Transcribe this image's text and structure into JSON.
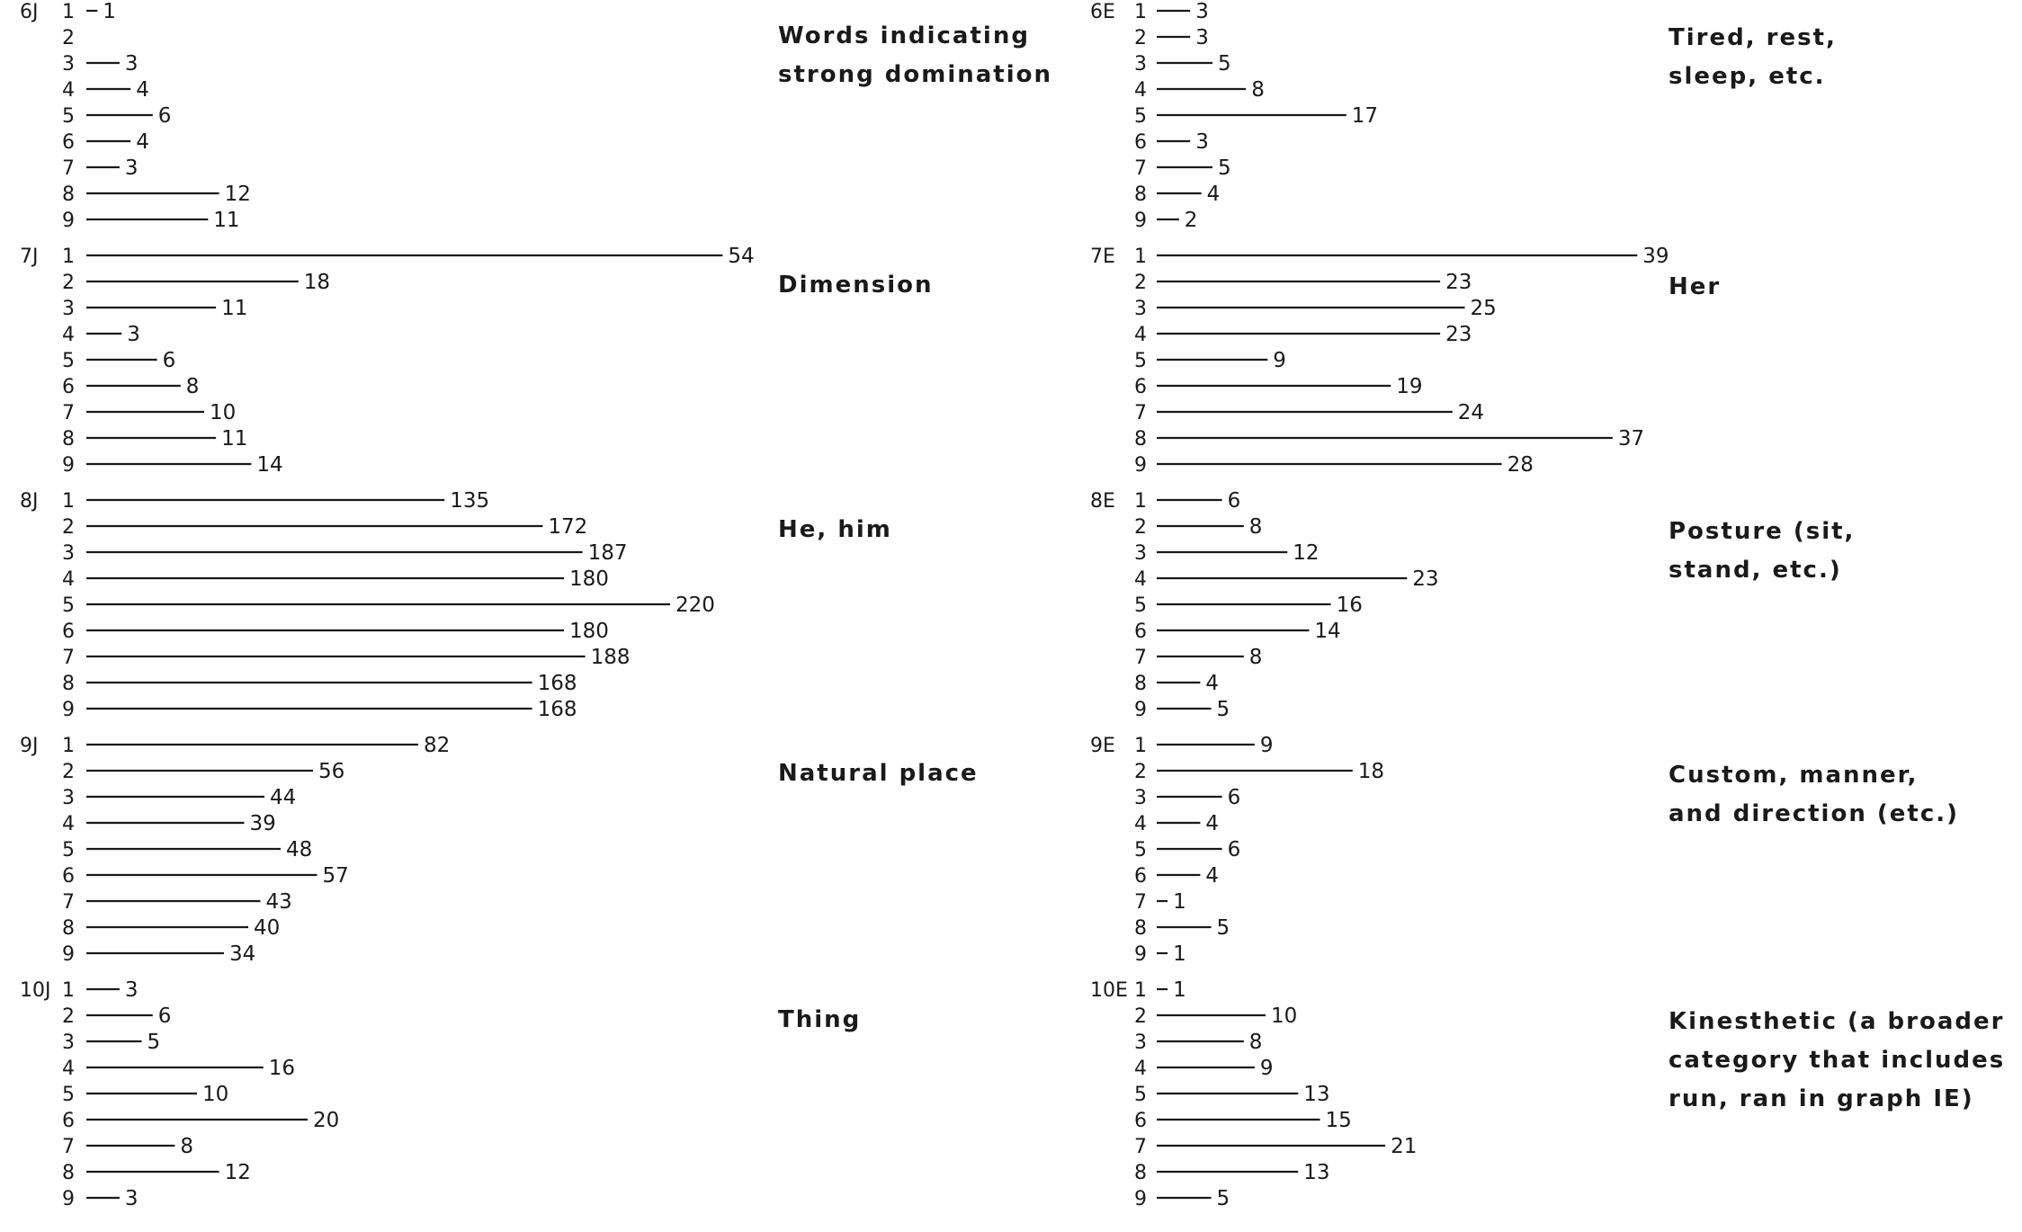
{
  "chart_data": [
    {
      "type": "bar",
      "group_id": "6J",
      "column": "J",
      "categories": [
        "1",
        "2",
        "3",
        "4",
        "5",
        "6",
        "7",
        "8",
        "9"
      ],
      "values": [
        1,
        0,
        3,
        4,
        6,
        4,
        3,
        12,
        11
      ],
      "value_labels": [
        "1",
        "",
        "3",
        "4",
        "6",
        "4",
        "3",
        "12",
        "11"
      ],
      "description_lines": [
        "Words indicating",
        "strong domination"
      ]
    },
    {
      "type": "bar",
      "group_id": "7J",
      "column": "J",
      "categories": [
        "1",
        "2",
        "3",
        "4",
        "5",
        "6",
        "7",
        "8",
        "9"
      ],
      "values": [
        54,
        18,
        11,
        3,
        6,
        8,
        10,
        11,
        14
      ],
      "value_labels": [
        "54",
        "18",
        "11",
        "3",
        "6",
        "8",
        "10",
        "11",
        "14"
      ],
      "description_lines": [
        "Dimension"
      ]
    },
    {
      "type": "bar",
      "group_id": "8J",
      "column": "J",
      "categories": [
        "1",
        "2",
        "3",
        "4",
        "5",
        "6",
        "7",
        "8",
        "9"
      ],
      "values": [
        135,
        172,
        187,
        180,
        220,
        180,
        188,
        168,
        168
      ],
      "value_labels": [
        "135",
        "172",
        "187",
        "180",
        "220",
        "180",
        "188",
        "168",
        "168"
      ],
      "description_lines": [
        "He, him"
      ]
    },
    {
      "type": "bar",
      "group_id": "9J",
      "column": "J",
      "categories": [
        "1",
        "2",
        "3",
        "4",
        "5",
        "6",
        "7",
        "8",
        "9"
      ],
      "values": [
        82,
        56,
        44,
        39,
        48,
        57,
        43,
        40,
        34
      ],
      "value_labels": [
        "82",
        "56",
        "44",
        "39",
        "48",
        "57",
        "43",
        "40",
        "34"
      ],
      "description_lines": [
        "Natural place"
      ]
    },
    {
      "type": "bar",
      "group_id": "10J",
      "column": "J",
      "categories": [
        "1",
        "2",
        "3",
        "4",
        "5",
        "6",
        "7",
        "8",
        "9"
      ],
      "values": [
        3,
        6,
        5,
        16,
        10,
        20,
        8,
        12,
        3
      ],
      "value_labels": [
        "3",
        "6",
        "5",
        "16",
        "10",
        "20",
        "8",
        "12",
        "3"
      ],
      "description_lines": [
        "Thing"
      ]
    },
    {
      "type": "bar",
      "group_id": "6E",
      "column": "E",
      "categories": [
        "1",
        "2",
        "3",
        "4",
        "5",
        "6",
        "7",
        "8",
        "9"
      ],
      "values": [
        3,
        3,
        5,
        8,
        17,
        3,
        5,
        4,
        2
      ],
      "value_labels": [
        "3",
        "3",
        "5",
        "8",
        "17",
        "3",
        "5",
        "4",
        "2"
      ],
      "description_lines": [
        "Tired, rest,",
        "sleep, etc."
      ]
    },
    {
      "type": "bar",
      "group_id": "7E",
      "column": "E",
      "categories": [
        "1",
        "2",
        "3",
        "4",
        "5",
        "6",
        "7",
        "8",
        "9"
      ],
      "values": [
        39,
        23,
        25,
        23,
        9,
        19,
        24,
        37,
        28
      ],
      "value_labels": [
        "39",
        "23",
        "25",
        "23",
        "9",
        "19",
        "24",
        "37",
        "28"
      ],
      "description_lines": [
        "Her"
      ]
    },
    {
      "type": "bar",
      "group_id": "8E",
      "column": "E",
      "categories": [
        "1",
        "2",
        "3",
        "4",
        "5",
        "6",
        "7",
        "8",
        "9"
      ],
      "values": [
        6,
        8,
        12,
        23,
        16,
        14,
        8,
        4,
        5
      ],
      "value_labels": [
        "6",
        "8",
        "12",
        "23",
        "16",
        "14",
        "8",
        "4",
        "5"
      ],
      "description_lines": [
        "Posture  (sit,",
        "stand, etc.)"
      ]
    },
    {
      "type": "bar",
      "group_id": "9E",
      "column": "E",
      "categories": [
        "1",
        "2",
        "3",
        "4",
        "5",
        "6",
        "7",
        "8",
        "9"
      ],
      "values": [
        9,
        18,
        6,
        4,
        6,
        4,
        1,
        5,
        1
      ],
      "value_labels": [
        "9",
        "18",
        "6",
        "4",
        "6",
        "4",
        "1",
        "5",
        "1"
      ],
      "description_lines": [
        "Custom, manner,",
        "and direction  (etc.)"
      ]
    },
    {
      "type": "bar",
      "group_id": "10E",
      "column": "E",
      "categories": [
        "1",
        "2",
        "3",
        "4",
        "5",
        "6",
        "7",
        "8",
        "9"
      ],
      "values": [
        1,
        10,
        8,
        9,
        13,
        15,
        21,
        13,
        5
      ],
      "value_labels": [
        "1",
        "10",
        "8",
        "9",
        "13",
        "15",
        "21",
        "13",
        "5"
      ],
      "description_lines": [
        "Kinesthetic (a broader",
        "category that includes",
        "run, ran in graph  IE)"
      ]
    }
  ]
}
